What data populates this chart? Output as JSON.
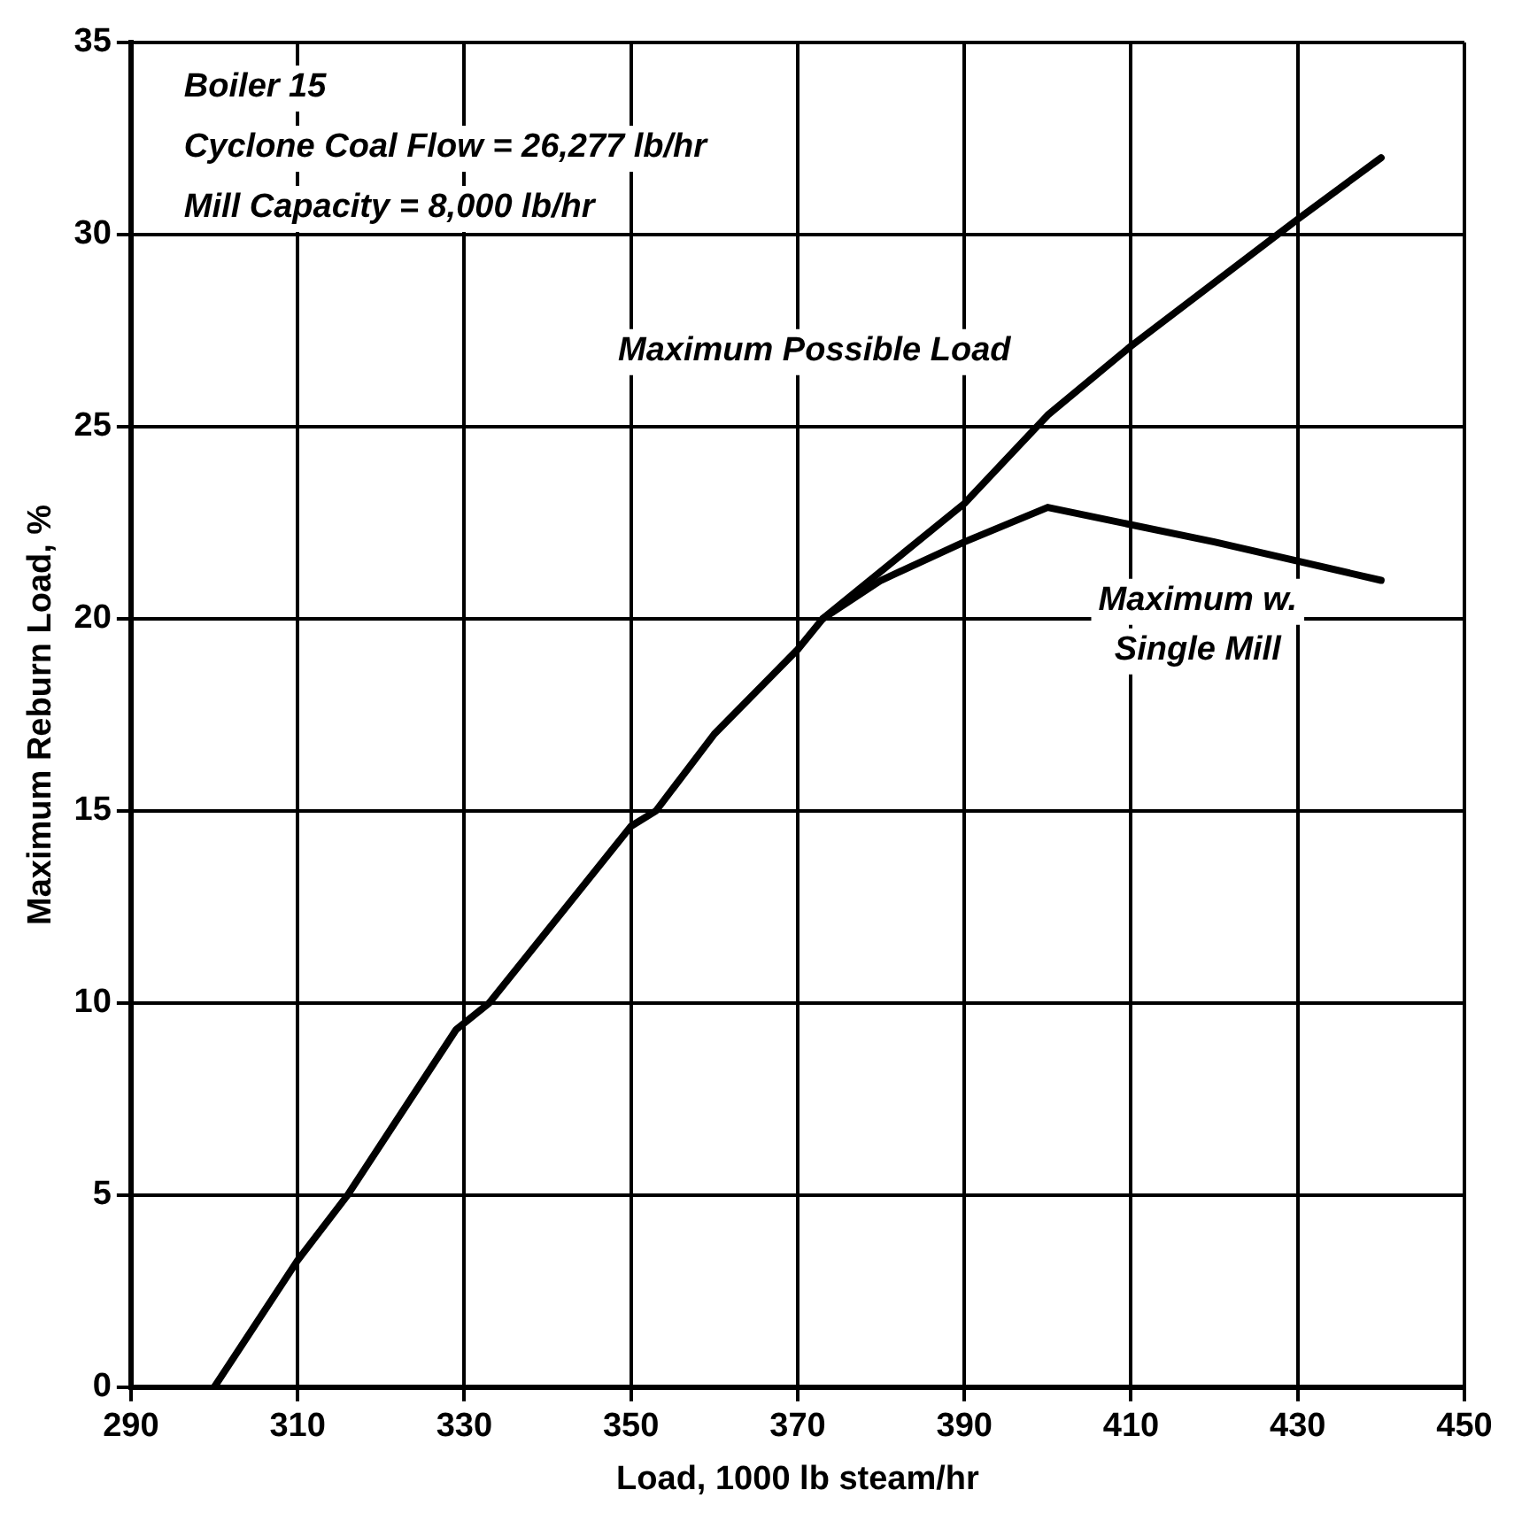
{
  "chart_data": {
    "type": "line",
    "xlabel": "Load, 1000 lb steam/hr",
    "ylabel": "Maximum Reburn Load, %",
    "annotations": [
      "Boiler 15",
      "Cyclone Coal Flow = 26,277 lb/hr",
      "Mill Capacity = 8,000 lb/hr"
    ],
    "xlim": [
      290,
      450
    ],
    "xticks": [
      290,
      310,
      330,
      350,
      370,
      390,
      410,
      430,
      450
    ],
    "ylim": [
      0,
      35
    ],
    "yticks": [
      0,
      5,
      10,
      15,
      20,
      25,
      30,
      35
    ],
    "grid": true,
    "legend": false,
    "marker": "none",
    "line_style": "solid",
    "series": [
      {
        "name": "Maximum Possible Load",
        "color": "#000000",
        "x": [
          300,
          310,
          316,
          329,
          333,
          350,
          353,
          360,
          370,
          373,
          390,
          400,
          410,
          430,
          440
        ],
        "values": [
          0,
          3.3,
          5,
          9.3,
          10,
          14.6,
          15,
          17,
          19.2,
          20,
          23,
          25.3,
          27.1,
          30.4,
          32
        ]
      },
      {
        "name": "Maximum w. Single Mill",
        "color": "#000000",
        "x": [
          373,
          380,
          390,
          400,
          420,
          440
        ],
        "values": [
          20,
          21,
          22,
          22.9,
          22,
          21
        ]
      }
    ]
  }
}
